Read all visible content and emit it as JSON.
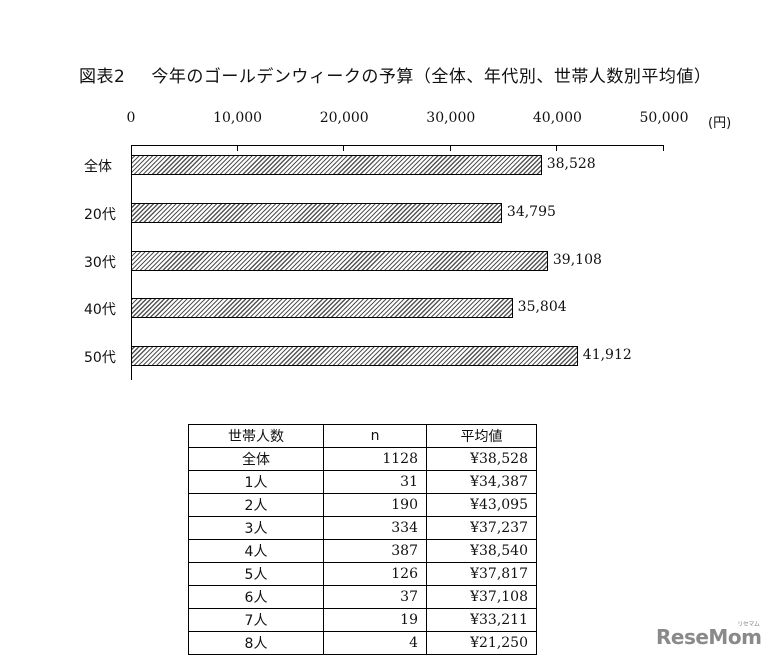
{
  "figure": {
    "number": "図表2",
    "title": "今年のゴールデンウィークの予算（全体、年代別、世帯人数別平均値）"
  },
  "chart_data": {
    "type": "bar",
    "orientation": "horizontal",
    "title": "今年のゴールデンウィークの予算（全体、年代別、世帯人数別平均値）",
    "xlabel": "(円)",
    "ylabel": "",
    "xlim": [
      0,
      50000
    ],
    "xticks": [
      "0",
      "10,000",
      "20,000",
      "30,000",
      "40,000",
      "50,000"
    ],
    "x_axis_position": "top",
    "grid": false,
    "bar_fill": "diagonal-hatch",
    "categories": [
      "全体",
      "20代",
      "30代",
      "40代",
      "50代"
    ],
    "values": [
      38528,
      34795,
      39108,
      35804,
      41912
    ],
    "value_labels": [
      "38,528",
      "34,795",
      "39,108",
      "35,804",
      "41,912"
    ]
  },
  "table": {
    "headers": [
      "世帯人数",
      "n",
      "平均値"
    ],
    "rows": [
      [
        "全体",
        "1128",
        "¥38,528"
      ],
      [
        "1人",
        "31",
        "¥34,387"
      ],
      [
        "2人",
        "190",
        "¥43,095"
      ],
      [
        "3人",
        "334",
        "¥37,237"
      ],
      [
        "4人",
        "387",
        "¥38,540"
      ],
      [
        "5人",
        "126",
        "¥37,817"
      ],
      [
        "6人",
        "37",
        "¥37,108"
      ],
      [
        "7人",
        "19",
        "¥33,211"
      ],
      [
        "8人",
        "4",
        "¥21,250"
      ]
    ]
  },
  "watermark": {
    "text": "ReseMom",
    "sub": "リセマム"
  }
}
